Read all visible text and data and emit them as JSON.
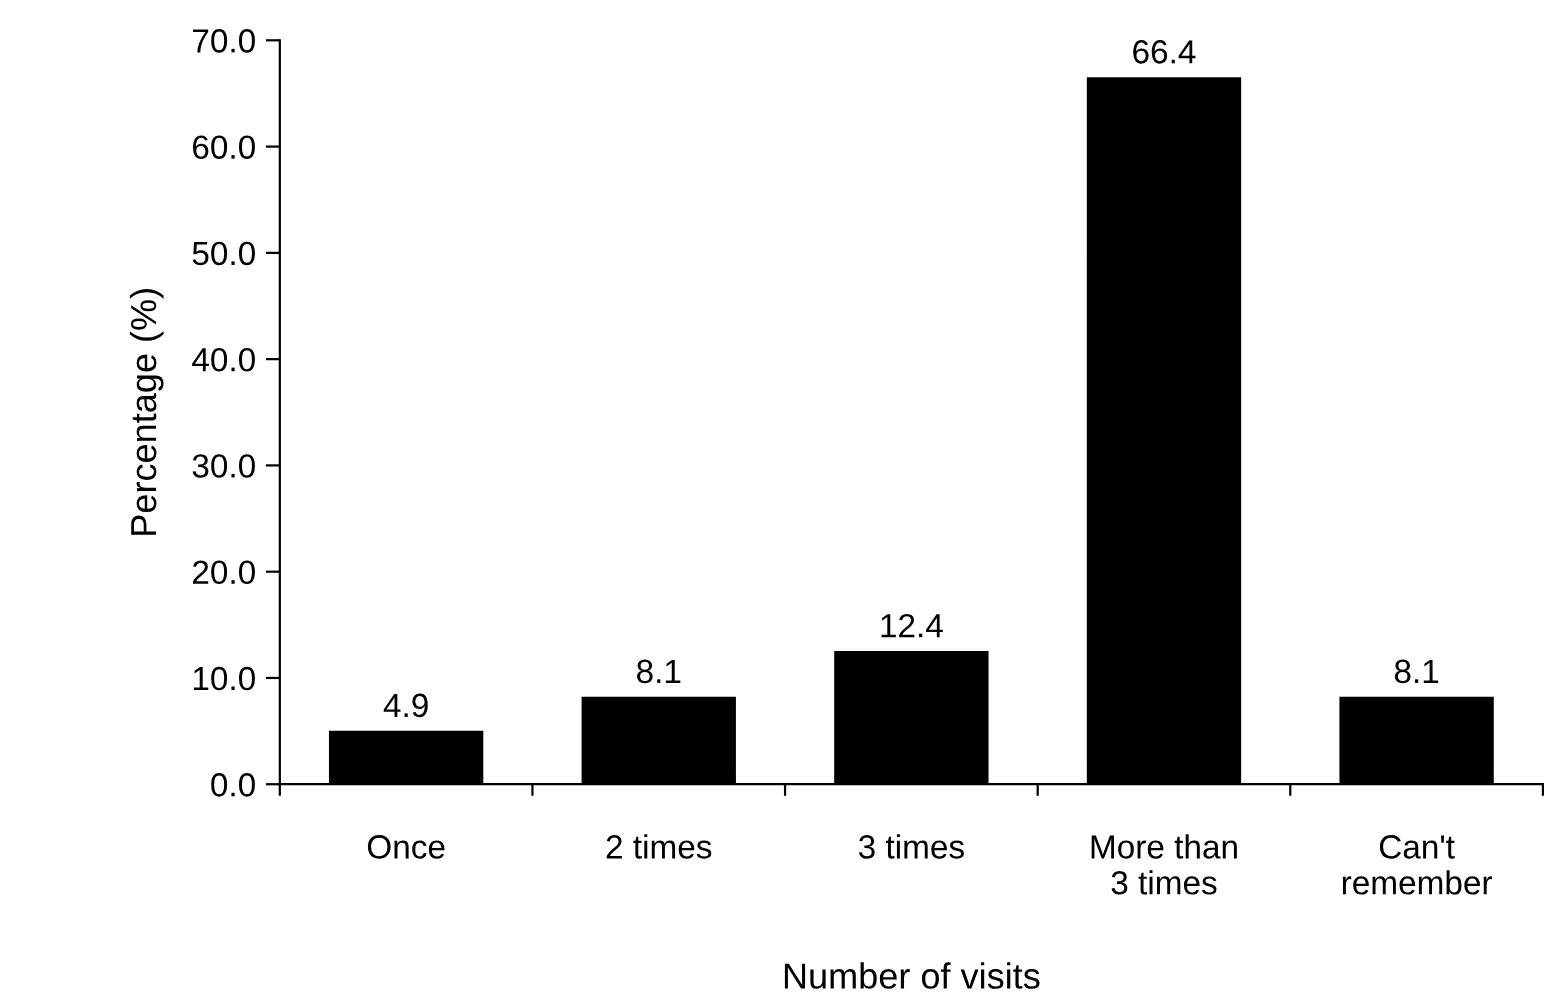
{
  "chart_data": {
    "type": "bar",
    "xlabel": "Number of visits",
    "ylabel": "Percentage (%)",
    "categories": [
      "Once",
      "2 times",
      "3 times",
      "More than\n3 times",
      "Can't\nremember"
    ],
    "values": [
      4.9,
      8.1,
      12.4,
      66.4,
      8.1
    ],
    "color": "#000000",
    "ylim": [
      0,
      70
    ],
    "yticks": [
      {
        "value": 0,
        "label": "0.0"
      },
      {
        "value": 10,
        "label": "10.0"
      },
      {
        "value": 20,
        "label": "20.0"
      },
      {
        "value": 30,
        "label": "30.0"
      },
      {
        "value": 40,
        "label": "40.0"
      },
      {
        "value": 50,
        "label": "50.0"
      },
      {
        "value": 60,
        "label": "60.0"
      },
      {
        "value": 70,
        "label": "70.0"
      }
    ],
    "data_labels": true,
    "grid": false,
    "legend": false
  }
}
